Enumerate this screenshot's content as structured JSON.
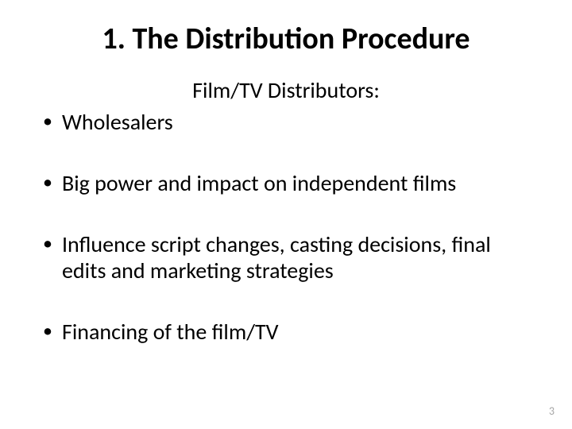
{
  "slide": {
    "title": "1. The Distribution Procedure",
    "subtitle": "Film/TV Distributors:",
    "bullets": [
      "Wholesalers",
      "Big power and impact on independent films",
      "Influence script changes, casting decisions, final edits and marketing strategies",
      "Financing of the film/TV"
    ],
    "page_number": "3",
    "colors": {
      "background": "#ffffff",
      "text": "#000000",
      "page_number": "#a6a6a6"
    },
    "typography": {
      "title_fontsize": 38,
      "title_weight": 700,
      "subtitle_fontsize": 28,
      "bullet_fontsize": 28,
      "page_number_fontsize": 14,
      "font_family": "Calibri"
    }
  }
}
